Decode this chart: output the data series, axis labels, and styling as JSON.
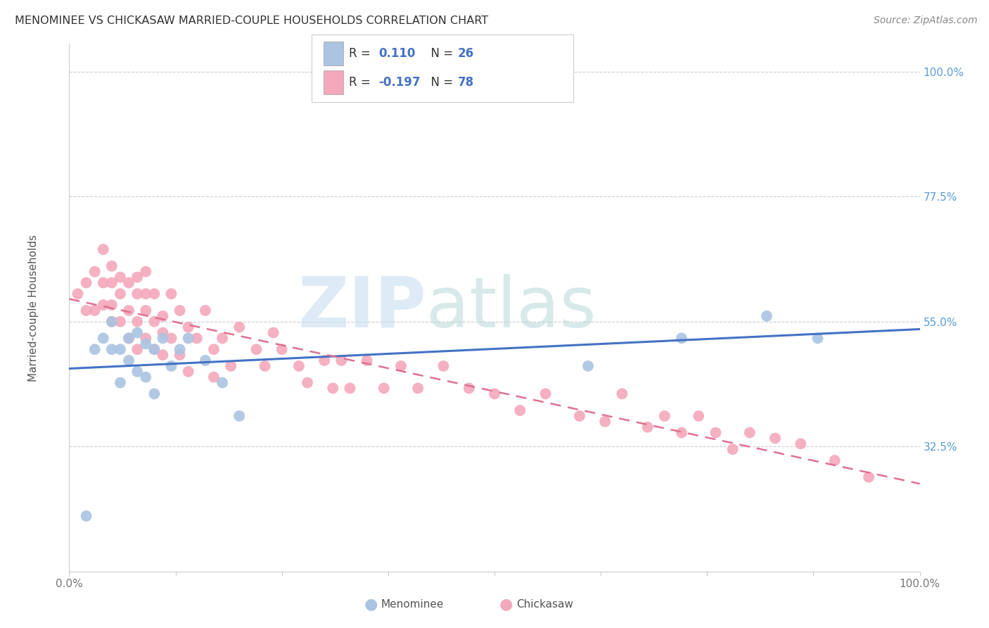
{
  "title": "MENOMINEE VS CHICKASAW MARRIED-COUPLE HOUSEHOLDS CORRELATION CHART",
  "source": "Source: ZipAtlas.com",
  "ylabel": "Married-couple Households",
  "R_menominee": 0.11,
  "N_menominee": 26,
  "R_chickasaw": -0.197,
  "N_chickasaw": 78,
  "color_menominee": "#aac4e2",
  "color_chickasaw": "#f4a8bc",
  "color_menominee_line": "#4472c4",
  "color_chickasaw_line": "#e07090",
  "legend_label_menominee": "Menominee",
  "legend_label_chickasaw": "Chickasaw",
  "ytick_vals": [
    0.325,
    0.55,
    0.775,
    1.0
  ],
  "ytick_labels": [
    "32.5%",
    "55.0%",
    "77.5%",
    "100.0%"
  ],
  "ymin": 0.1,
  "ymax": 1.05,
  "menominee_x": [
    0.02,
    0.03,
    0.04,
    0.05,
    0.05,
    0.06,
    0.06,
    0.07,
    0.07,
    0.08,
    0.08,
    0.09,
    0.09,
    0.1,
    0.1,
    0.11,
    0.12,
    0.13,
    0.14,
    0.16,
    0.18,
    0.2,
    0.61,
    0.72,
    0.82,
    0.88
  ],
  "menominee_y": [
    0.2,
    0.5,
    0.52,
    0.5,
    0.55,
    0.5,
    0.44,
    0.52,
    0.48,
    0.53,
    0.46,
    0.51,
    0.45,
    0.5,
    0.42,
    0.52,
    0.47,
    0.5,
    0.52,
    0.48,
    0.44,
    0.38,
    0.47,
    0.52,
    0.56,
    0.52
  ],
  "chickasaw_x": [
    0.01,
    0.02,
    0.02,
    0.03,
    0.03,
    0.04,
    0.04,
    0.04,
    0.05,
    0.05,
    0.05,
    0.05,
    0.06,
    0.06,
    0.06,
    0.07,
    0.07,
    0.07,
    0.08,
    0.08,
    0.08,
    0.08,
    0.09,
    0.09,
    0.09,
    0.09,
    0.1,
    0.1,
    0.1,
    0.11,
    0.11,
    0.11,
    0.12,
    0.12,
    0.13,
    0.13,
    0.14,
    0.14,
    0.15,
    0.16,
    0.17,
    0.17,
    0.18,
    0.19,
    0.2,
    0.22,
    0.23,
    0.24,
    0.25,
    0.27,
    0.28,
    0.3,
    0.31,
    0.32,
    0.33,
    0.35,
    0.37,
    0.39,
    0.41,
    0.44,
    0.47,
    0.5,
    0.53,
    0.56,
    0.6,
    0.63,
    0.65,
    0.68,
    0.7,
    0.72,
    0.74,
    0.76,
    0.78,
    0.8,
    0.83,
    0.86,
    0.9,
    0.94
  ],
  "chickasaw_y": [
    0.6,
    0.62,
    0.57,
    0.64,
    0.57,
    0.62,
    0.68,
    0.58,
    0.62,
    0.58,
    0.55,
    0.65,
    0.6,
    0.63,
    0.55,
    0.62,
    0.57,
    0.52,
    0.6,
    0.55,
    0.63,
    0.5,
    0.57,
    0.6,
    0.52,
    0.64,
    0.55,
    0.6,
    0.5,
    0.56,
    0.49,
    0.53,
    0.6,
    0.52,
    0.57,
    0.49,
    0.54,
    0.46,
    0.52,
    0.57,
    0.5,
    0.45,
    0.52,
    0.47,
    0.54,
    0.5,
    0.47,
    0.53,
    0.5,
    0.47,
    0.44,
    0.48,
    0.43,
    0.48,
    0.43,
    0.48,
    0.43,
    0.47,
    0.43,
    0.47,
    0.43,
    0.42,
    0.39,
    0.42,
    0.38,
    0.37,
    0.42,
    0.36,
    0.38,
    0.35,
    0.38,
    0.35,
    0.32,
    0.35,
    0.34,
    0.33,
    0.3,
    0.27
  ]
}
